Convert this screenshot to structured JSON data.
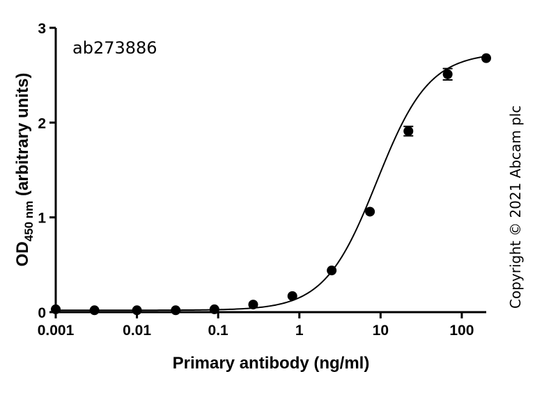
{
  "chart_data": {
    "type": "scatter",
    "x_scale": "log",
    "xlim": [
      0.001,
      200
    ],
    "ylim": [
      0,
      3
    ],
    "x_ticks": [
      0.001,
      0.01,
      0.1,
      1,
      10,
      100
    ],
    "x_tick_labels": [
      "0.001",
      "0.01",
      "0.1",
      "1",
      "10",
      "100"
    ],
    "y_ticks": [
      0,
      1,
      2,
      3
    ],
    "y_tick_labels": [
      "0",
      "1",
      "2",
      "3"
    ],
    "xlabel": "Primary antibody (ng/ml)",
    "ylabel_main": "OD",
    "ylabel_sub": "450 nm",
    "ylabel_rest": " (arbitrary units)",
    "annotation": "ab273886",
    "copyright": "Copyright © 2021 Abcam plc",
    "grid": false,
    "legend": "none",
    "fit_curve": "sigmoidal",
    "marker_color": "#000000",
    "series": [
      {
        "x": [
          0.001,
          0.003,
          0.01,
          0.03,
          0.09,
          0.27,
          0.82,
          2.5,
          7.4,
          22,
          67,
          200
        ],
        "y": [
          0.03,
          0.02,
          0.02,
          0.02,
          0.03,
          0.08,
          0.17,
          0.44,
          1.06,
          1.91,
          2.51,
          2.68
        ],
        "error": [
          0,
          0,
          0,
          0,
          0,
          0,
          0,
          0,
          0,
          0.05,
          0.06,
          0
        ]
      }
    ]
  }
}
